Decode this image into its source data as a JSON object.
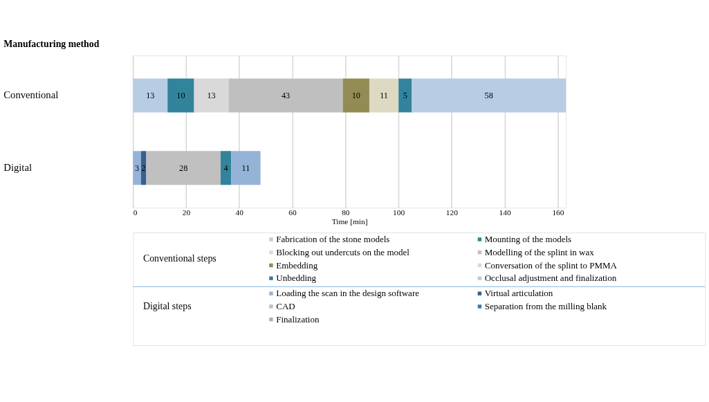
{
  "chart_data": {
    "type": "bar",
    "orientation": "horizontal",
    "stacked": true,
    "data_labels": true,
    "ylabel": "Manufacturing method",
    "xlabel": "Time [min]",
    "categories": [
      "Conventional",
      "Digital"
    ],
    "xlim": [
      0,
      163
    ],
    "xticks": [
      0,
      20,
      40,
      60,
      80,
      100,
      120,
      140,
      160
    ],
    "grid": "x",
    "legend": "bottom",
    "annotations": [
      "Conventional steps",
      "Digital steps"
    ],
    "series": [
      {
        "name": "Fabrication of the stone models",
        "color": "#b8cce4",
        "values": [
          13,
          null
        ]
      },
      {
        "name": "Mounting of the models",
        "color": "#31849b",
        "values": [
          10,
          null
        ]
      },
      {
        "name": "Blocking out undercuts on the model",
        "color": "#d9d9d9",
        "values": [
          13,
          null
        ]
      },
      {
        "name": "Modelling of the splint in wax",
        "color": "#bfbfbf",
        "values": [
          43,
          null
        ]
      },
      {
        "name": "Embedding",
        "color": "#948a54",
        "values": [
          10,
          null
        ]
      },
      {
        "name": "Conversation of the splint to PMMA",
        "color": "#ddd9c3",
        "values": [
          11,
          null
        ]
      },
      {
        "name": "Unbedding",
        "color": "#31849b",
        "values": [
          5,
          null
        ]
      },
      {
        "name": "Occlusal adjustment and finalization",
        "color": "#b8cce4",
        "values": [
          58,
          null
        ]
      },
      {
        "name": "Loading the scan in the design software",
        "color": "#95b3d7",
        "values": [
          null,
          3
        ]
      },
      {
        "name": "Virtual articulation",
        "color": "#366092",
        "values": [
          null,
          2
        ]
      },
      {
        "name": "CAD",
        "color": "#c0c0c0",
        "values": [
          null,
          28
        ]
      },
      {
        "name": "Separation from the milling blank",
        "color": "#31849b",
        "values": [
          null,
          4
        ]
      },
      {
        "name": "Finalization",
        "color": "#95b3d7",
        "values": [
          null,
          11
        ]
      }
    ]
  }
}
